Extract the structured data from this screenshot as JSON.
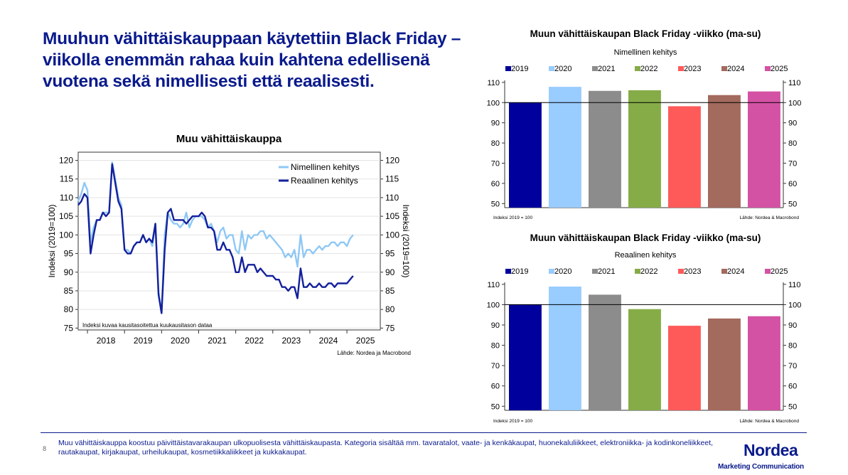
{
  "headline": "Muuhun vähittäiskauppaan käytettiin Black Friday –viikolla enemmän rahaa kuin kahtena edellisenä vuotena sekä nimellisesti että reaalisesti.",
  "chart_data": [
    {
      "type": "line",
      "title": "Muu vähittäiskauppa",
      "ylabel_left": "Indeksi (2019=100)",
      "ylabel_right": "Indeksi (2019=100)",
      "ylim": [
        75,
        120
      ],
      "yticks": [
        "75",
        "80",
        "85",
        "90",
        "95",
        "100",
        "105",
        "110",
        "115",
        "120"
      ],
      "x_range": [
        2017.75,
        2025.9
      ],
      "xtick_labels": [
        "2018",
        "2019",
        "2020",
        "2021",
        "2022",
        "2023",
        "2024",
        "2025"
      ],
      "note": "Indeksi kuvaa kausitasoitettua kuukausitason dataa",
      "source": "Lähde: Nordea ja Macrobond",
      "legend": [
        "Nimellinen kehitys",
        "Reaalinen kehitys"
      ],
      "colors": [
        "#8ec8f5",
        "#14209c"
      ],
      "series": [
        {
          "name": "Nimellinen kehitys",
          "x_start": 2017.75,
          "x_step": 0.083333,
          "values": [
            109,
            111,
            114,
            112,
            98,
            102,
            104,
            104,
            106,
            106,
            106,
            119.5,
            115,
            110,
            108,
            96,
            96,
            95,
            97,
            98,
            98,
            100,
            98,
            99,
            97,
            103,
            85,
            79,
            100,
            106,
            104,
            103,
            103,
            102,
            103,
            106,
            102,
            104,
            105,
            105,
            105,
            104,
            102,
            103,
            101,
            98,
            101,
            102,
            99,
            100,
            100,
            96,
            95,
            101,
            96,
            100,
            99,
            100,
            100,
            101,
            101,
            99,
            100,
            99,
            98,
            97,
            96,
            94,
            95,
            94,
            96,
            91.5,
            100,
            94,
            96,
            96,
            95,
            96,
            97,
            96,
            97,
            97,
            98,
            98,
            97,
            98,
            98,
            97,
            99,
            100
          ]
        },
        {
          "name": "Reaalinen kehitys",
          "x_start": 2017.75,
          "x_step": 0.083333,
          "values": [
            108,
            109,
            111,
            110,
            95,
            100,
            104,
            104,
            106,
            105,
            106,
            119,
            114,
            109,
            107,
            96,
            95,
            95,
            97,
            98,
            98,
            100,
            98,
            99,
            98,
            103,
            84,
            79,
            96,
            106,
            107,
            104,
            104,
            104,
            104,
            103,
            104,
            105,
            105,
            105,
            106,
            105,
            102,
            102,
            101,
            96,
            96,
            98,
            96,
            96,
            94,
            90,
            90,
            94,
            90,
            92,
            92,
            92,
            90,
            91,
            90,
            89,
            89,
            89,
            88,
            88,
            86,
            86,
            85,
            86,
            86,
            83,
            91,
            86,
            86,
            87,
            86,
            86,
            87,
            86,
            86,
            87,
            87,
            86,
            87,
            87,
            87,
            87,
            88,
            89
          ]
        }
      ]
    },
    {
      "type": "bar",
      "title": "Muun vähittäiskaupan Black Friday -viikko (ma-su)",
      "subtitle": "Nimellinen kehitys",
      "categories": [
        "2019",
        "2020",
        "2021",
        "2022",
        "2023",
        "2024",
        "2025"
      ],
      "values": [
        100,
        107.8,
        105.8,
        106.1,
        98.2,
        103.7,
        105.5
      ],
      "colors": [
        "#00009c",
        "#99ccff",
        "#8c8c8c",
        "#86ac48",
        "#ff5a5a",
        "#a36a5e",
        "#d452a4"
      ],
      "ylim": [
        48,
        111
      ],
      "yticks": [
        "50",
        "60",
        "70",
        "80",
        "90",
        "100",
        "110"
      ],
      "note": "Indeksi 2019 = 100",
      "source": "Lähde: Nordea & Macrobond"
    },
    {
      "type": "bar",
      "title": "Muun vähittäiskaupan Black Friday -viikko (ma-su)",
      "subtitle": "Reaalinen kehitys",
      "categories": [
        "2019",
        "2020",
        "2021",
        "2022",
        "2023",
        "2024",
        "2025"
      ],
      "values": [
        100,
        108.9,
        104.9,
        97.8,
        89.6,
        93.2,
        94.3
      ],
      "colors": [
        "#00009c",
        "#99ccff",
        "#8c8c8c",
        "#86ac48",
        "#ff5a5a",
        "#a36a5e",
        "#d452a4"
      ],
      "ylim": [
        48,
        111
      ],
      "yticks": [
        "50",
        "60",
        "70",
        "80",
        "90",
        "100",
        "110"
      ],
      "note": "Indeksi 2019 = 100",
      "source": "Lähde: Nordea & Macrobond"
    }
  ],
  "footer": {
    "page_number": "8",
    "note": "Muu vähittäiskauppa koostuu päivittäistavarakaupan ulkopuolisesta vähittäiskaupasta. Kategoria sisältää mm. tavaratalot, vaate- ja kenkäkaupat, huonekaluliikkeet, elektroniikka- ja kodinkoneliikkeet, rautakaupat, kirjakaupat, urheilukaupat, kosmetiikkaliikkeet ja kukkakaupat.",
    "brand": "Nordea",
    "brand_sub": "Marketing Communication"
  }
}
